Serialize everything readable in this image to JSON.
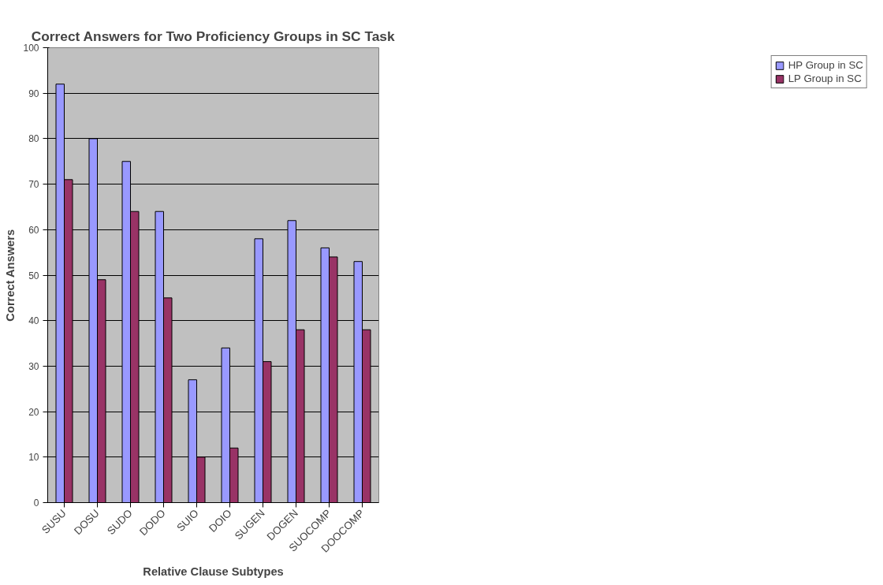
{
  "chart_data": {
    "type": "bar",
    "title": "Correct Answers for Two Proficiency Groups in SC Task",
    "xlabel": "Relative Clause Subtypes",
    "ylabel": "Correct Answers",
    "categories": [
      "SUSU",
      "DOSU",
      "SUDO",
      "DODO",
      "SUIO",
      "DOIO",
      "SUGEN",
      "DOGEN",
      "SUOCOMP",
      "DOOCOMP"
    ],
    "series": [
      {
        "name": "HP Group in SC",
        "color": "#9999ff",
        "values": [
          92,
          80,
          75,
          64,
          27,
          34,
          58,
          62,
          56,
          53
        ]
      },
      {
        "name": "LP Group in SC",
        "color": "#993366",
        "values": [
          71,
          49,
          64,
          45,
          10,
          12,
          31,
          38,
          54,
          38
        ]
      }
    ],
    "ylim": [
      0,
      100
    ],
    "yticks": [
      0,
      10,
      20,
      30,
      40,
      50,
      60,
      70,
      80,
      90,
      100
    ],
    "grid": "y",
    "legend": "right"
  }
}
